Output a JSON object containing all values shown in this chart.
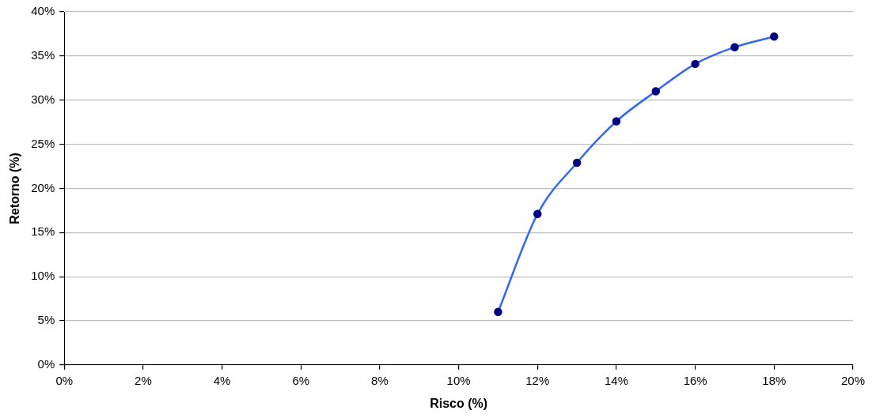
{
  "chart_data": {
    "type": "line",
    "xlabel": "Risco (%)",
    "ylabel": "Retorno (%)",
    "x": [
      11,
      12,
      13,
      14,
      15,
      16,
      17,
      18
    ],
    "series": [
      {
        "color": "#3366ff",
        "values": [
          6.0,
          17.1,
          22.9,
          27.6,
          31.0,
          34.1,
          36.0,
          37.2
        ]
      }
    ],
    "xlim": [
      0,
      20
    ],
    "xticks": [
      {
        "value": 0,
        "label": "0%"
      },
      {
        "value": 2,
        "label": "2%"
      },
      {
        "value": 4,
        "label": "4%"
      },
      {
        "value": 6,
        "label": "6%"
      },
      {
        "value": 8,
        "label": "8%"
      },
      {
        "value": 10,
        "label": "10%"
      },
      {
        "value": 12,
        "label": "12%"
      },
      {
        "value": 14,
        "label": "14%"
      },
      {
        "value": 16,
        "label": "16%"
      },
      {
        "value": 18,
        "label": "18%"
      },
      {
        "value": 20,
        "label": "20%"
      }
    ],
    "ylim": [
      0,
      40
    ],
    "yticks": [
      {
        "value": 0,
        "label": "0%"
      },
      {
        "value": 5,
        "label": "5%"
      },
      {
        "value": 10,
        "label": "10%"
      },
      {
        "value": 15,
        "label": "15%"
      },
      {
        "value": 20,
        "label": "20%"
      },
      {
        "value": 25,
        "label": "25%"
      },
      {
        "value": 30,
        "label": "30%"
      },
      {
        "value": 35,
        "label": "35%"
      },
      {
        "value": 40,
        "label": "40%"
      }
    ],
    "grid": "y",
    "marker": "circle",
    "line_style": "solid"
  }
}
